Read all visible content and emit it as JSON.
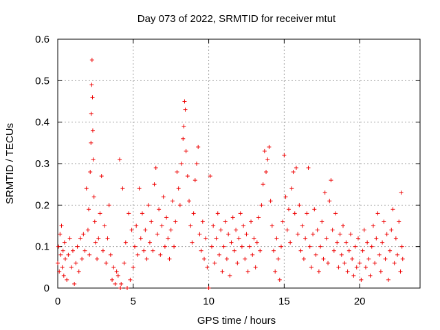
{
  "chart_data": {
    "type": "scatter",
    "title": "Day 073 of 2022, SRMTID for receiver mtut",
    "xlabel": "GPS time / hours",
    "ylabel": "SRMTID / TECUs",
    "xlim": [
      0,
      24
    ],
    "ylim": [
      0,
      0.6
    ],
    "xticks": [
      0,
      5,
      10,
      15,
      20
    ],
    "yticks": [
      0,
      0.1,
      0.2,
      0.3,
      0.4,
      0.5,
      0.6
    ],
    "xtick_labels": [
      "0",
      "5",
      "10",
      "15",
      "20"
    ],
    "ytick_labels": [
      "0",
      "0.1",
      "0.2",
      "0.3",
      "0.4",
      "0.5",
      "0.6"
    ],
    "grid": true,
    "marker": "+",
    "color": "#ee0000",
    "series": [
      {
        "name": "SRMTID",
        "points": [
          [
            0.0,
            0.06
          ],
          [
            0.05,
            0.1
          ],
          [
            0.1,
            0.04
          ],
          [
            0.15,
            0.13
          ],
          [
            0.2,
            0.08
          ],
          [
            0.25,
            0.15
          ],
          [
            0.3,
            0.05
          ],
          [
            0.35,
            0.09
          ],
          [
            0.4,
            0.03
          ],
          [
            0.45,
            0.11
          ],
          [
            0.5,
            0.07
          ],
          [
            0.6,
            0.02
          ],
          [
            0.7,
            0.08
          ],
          [
            0.8,
            0.12
          ],
          [
            0.9,
            0.05
          ],
          [
            1.0,
            0.09
          ],
          [
            1.1,
            0.01
          ],
          [
            1.2,
            0.06
          ],
          [
            1.3,
            0.1
          ],
          [
            1.4,
            0.04
          ],
          [
            1.5,
            0.12
          ],
          [
            1.6,
            0.07
          ],
          [
            1.7,
            0.13
          ],
          [
            1.8,
            0.09
          ],
          [
            1.9,
            0.24
          ],
          [
            2.0,
            0.14
          ],
          [
            2.05,
            0.19
          ],
          [
            2.1,
            0.08
          ],
          [
            2.15,
            0.28
          ],
          [
            2.2,
            0.35
          ],
          [
            2.22,
            0.42
          ],
          [
            2.25,
            0.49
          ],
          [
            2.27,
            0.55
          ],
          [
            2.3,
            0.46
          ],
          [
            2.32,
            0.38
          ],
          [
            2.35,
            0.31
          ],
          [
            2.4,
            0.22
          ],
          [
            2.45,
            0.16
          ],
          [
            2.5,
            0.11
          ],
          [
            2.6,
            0.07
          ],
          [
            2.7,
            0.12
          ],
          [
            2.8,
            0.18
          ],
          [
            2.9,
            0.27
          ],
          [
            3.0,
            0.09
          ],
          [
            3.1,
            0.15
          ],
          [
            3.2,
            0.06
          ],
          [
            3.3,
            0.12
          ],
          [
            3.4,
            0.2
          ],
          [
            3.5,
            0.08
          ],
          [
            3.6,
            0.02
          ],
          [
            3.7,
            0.05
          ],
          [
            3.8,
            0.01
          ],
          [
            3.9,
            0.04
          ],
          [
            4.0,
            0.03
          ],
          [
            4.1,
            0.31
          ],
          [
            4.15,
            0.0
          ],
          [
            4.2,
            0.01
          ],
          [
            4.3,
            0.24
          ],
          [
            4.4,
            0.06
          ],
          [
            4.5,
            0.11
          ],
          [
            4.6,
            0.0
          ],
          [
            4.7,
            0.18
          ],
          [
            4.8,
            0.02
          ],
          [
            4.9,
            0.14
          ],
          [
            5.0,
            0.05
          ],
          [
            5.1,
            0.1
          ],
          [
            5.2,
            0.15
          ],
          [
            5.3,
            0.08
          ],
          [
            5.4,
            0.24
          ],
          [
            5.5,
            0.12
          ],
          [
            5.6,
            0.18
          ],
          [
            5.7,
            0.09
          ],
          [
            5.8,
            0.14
          ],
          [
            5.9,
            0.07
          ],
          [
            6.0,
            0.2
          ],
          [
            6.1,
            0.11
          ],
          [
            6.2,
            0.16
          ],
          [
            6.3,
            0.09
          ],
          [
            6.4,
            0.25
          ],
          [
            6.5,
            0.29
          ],
          [
            6.6,
            0.13
          ],
          [
            6.7,
            0.19
          ],
          [
            6.8,
            0.08
          ],
          [
            6.9,
            0.15
          ],
          [
            7.0,
            0.22
          ],
          [
            7.1,
            0.1
          ],
          [
            7.2,
            0.17
          ],
          [
            7.3,
            0.12
          ],
          [
            7.4,
            0.07
          ],
          [
            7.5,
            0.14
          ],
          [
            7.6,
            0.21
          ],
          [
            7.7,
            0.1
          ],
          [
            7.8,
            0.16
          ],
          [
            7.9,
            0.28
          ],
          [
            8.0,
            0.24
          ],
          [
            8.1,
            0.2
          ],
          [
            8.2,
            0.3
          ],
          [
            8.3,
            0.36
          ],
          [
            8.35,
            0.39
          ],
          [
            8.4,
            0.45
          ],
          [
            8.45,
            0.43
          ],
          [
            8.5,
            0.33
          ],
          [
            8.6,
            0.27
          ],
          [
            8.7,
            0.21
          ],
          [
            8.8,
            0.15
          ],
          [
            8.9,
            0.11
          ],
          [
            9.0,
            0.18
          ],
          [
            9.1,
            0.26
          ],
          [
            9.2,
            0.3
          ],
          [
            9.3,
            0.34
          ],
          [
            9.4,
            0.13
          ],
          [
            9.5,
            0.09
          ],
          [
            9.6,
            0.16
          ],
          [
            9.7,
            0.07
          ],
          [
            9.8,
            0.12
          ],
          [
            9.9,
            0.05
          ],
          [
            10.0,
            0.0
          ],
          [
            10.1,
            0.27
          ],
          [
            10.2,
            0.1
          ],
          [
            10.3,
            0.15
          ],
          [
            10.4,
            0.06
          ],
          [
            10.5,
            0.12
          ],
          [
            10.6,
            0.18
          ],
          [
            10.7,
            0.08
          ],
          [
            10.8,
            0.14
          ],
          [
            10.9,
            0.04
          ],
          [
            11.0,
            0.1
          ],
          [
            11.1,
            0.16
          ],
          [
            11.2,
            0.07
          ],
          [
            11.3,
            0.13
          ],
          [
            11.4,
            0.03
          ],
          [
            11.5,
            0.11
          ],
          [
            11.6,
            0.17
          ],
          [
            11.7,
            0.09
          ],
          [
            11.8,
            0.14
          ],
          [
            11.9,
            0.06
          ],
          [
            12.0,
            0.12
          ],
          [
            12.1,
            0.18
          ],
          [
            12.2,
            0.1
          ],
          [
            12.3,
            0.15
          ],
          [
            12.4,
            0.07
          ],
          [
            12.5,
            0.13
          ],
          [
            12.6,
            0.04
          ],
          [
            12.7,
            0.1
          ],
          [
            12.8,
            0.16
          ],
          [
            12.9,
            0.08
          ],
          [
            13.0,
            0.12
          ],
          [
            13.1,
            0.05
          ],
          [
            13.2,
            0.11
          ],
          [
            13.3,
            0.17
          ],
          [
            13.4,
            0.09
          ],
          [
            13.5,
            0.2
          ],
          [
            13.6,
            0.25
          ],
          [
            13.7,
            0.33
          ],
          [
            13.8,
            0.28
          ],
          [
            13.9,
            0.31
          ],
          [
            14.0,
            0.34
          ],
          [
            14.1,
            0.21
          ],
          [
            14.2,
            0.15
          ],
          [
            14.3,
            0.09
          ],
          [
            14.4,
            0.04
          ],
          [
            14.5,
            0.12
          ],
          [
            14.6,
            0.07
          ],
          [
            14.7,
            0.02
          ],
          [
            14.8,
            0.1
          ],
          [
            14.9,
            0.16
          ],
          [
            15.0,
            0.32
          ],
          [
            15.1,
            0.22
          ],
          [
            15.2,
            0.14
          ],
          [
            15.3,
            0.19
          ],
          [
            15.4,
            0.11
          ],
          [
            15.5,
            0.24
          ],
          [
            15.6,
            0.28
          ],
          [
            15.7,
            0.18
          ],
          [
            15.8,
            0.29
          ],
          [
            15.9,
            0.13
          ],
          [
            16.0,
            0.2
          ],
          [
            16.1,
            0.09
          ],
          [
            16.2,
            0.15
          ],
          [
            16.3,
            0.07
          ],
          [
            16.4,
            0.12
          ],
          [
            16.5,
            0.18
          ],
          [
            16.6,
            0.29
          ],
          [
            16.7,
            0.1
          ],
          [
            16.8,
            0.05
          ],
          [
            16.9,
            0.13
          ],
          [
            17.0,
            0.19
          ],
          [
            17.1,
            0.08
          ],
          [
            17.2,
            0.14
          ],
          [
            17.3,
            0.04
          ],
          [
            17.4,
            0.1
          ],
          [
            17.5,
            0.16
          ],
          [
            17.6,
            0.07
          ],
          [
            17.7,
            0.23
          ],
          [
            17.8,
            0.12
          ],
          [
            17.9,
            0.06
          ],
          [
            18.0,
            0.21
          ],
          [
            18.1,
            0.26
          ],
          [
            18.2,
            0.14
          ],
          [
            18.3,
            0.09
          ],
          [
            18.4,
            0.18
          ],
          [
            18.5,
            0.11
          ],
          [
            18.6,
            0.05
          ],
          [
            18.7,
            0.13
          ],
          [
            18.8,
            0.08
          ],
          [
            18.9,
            0.15
          ],
          [
            19.0,
            0.06
          ],
          [
            19.1,
            0.11
          ],
          [
            19.2,
            0.04
          ],
          [
            19.3,
            0.09
          ],
          [
            19.4,
            0.13
          ],
          [
            19.5,
            0.07
          ],
          [
            19.6,
            0.03
          ],
          [
            19.7,
            0.1
          ],
          [
            19.8,
            0.05
          ],
          [
            19.9,
            0.12
          ],
          [
            20.0,
            0.06
          ],
          [
            20.1,
            0.02
          ],
          [
            20.2,
            0.09
          ],
          [
            20.3,
            0.14
          ],
          [
            20.4,
            0.05
          ],
          [
            20.5,
            0.11
          ],
          [
            20.6,
            0.07
          ],
          [
            20.7,
            0.03
          ],
          [
            20.8,
            0.1
          ],
          [
            20.9,
            0.15
          ],
          [
            21.0,
            0.06
          ],
          [
            21.1,
            0.12
          ],
          [
            21.2,
            0.18
          ],
          [
            21.3,
            0.08
          ],
          [
            21.4,
            0.04
          ],
          [
            21.5,
            0.11
          ],
          [
            21.6,
            0.16
          ],
          [
            21.7,
            0.07
          ],
          [
            21.8,
            0.13
          ],
          [
            21.9,
            0.02
          ],
          [
            22.0,
            0.09
          ],
          [
            22.1,
            0.14
          ],
          [
            22.2,
            0.19
          ],
          [
            22.3,
            0.06
          ],
          [
            22.4,
            0.12
          ],
          [
            22.5,
            0.08
          ],
          [
            22.6,
            0.16
          ],
          [
            22.7,
            0.04
          ],
          [
            22.75,
            0.23
          ],
          [
            22.8,
            0.1
          ],
          [
            22.85,
            0.07
          ]
        ]
      }
    ]
  }
}
